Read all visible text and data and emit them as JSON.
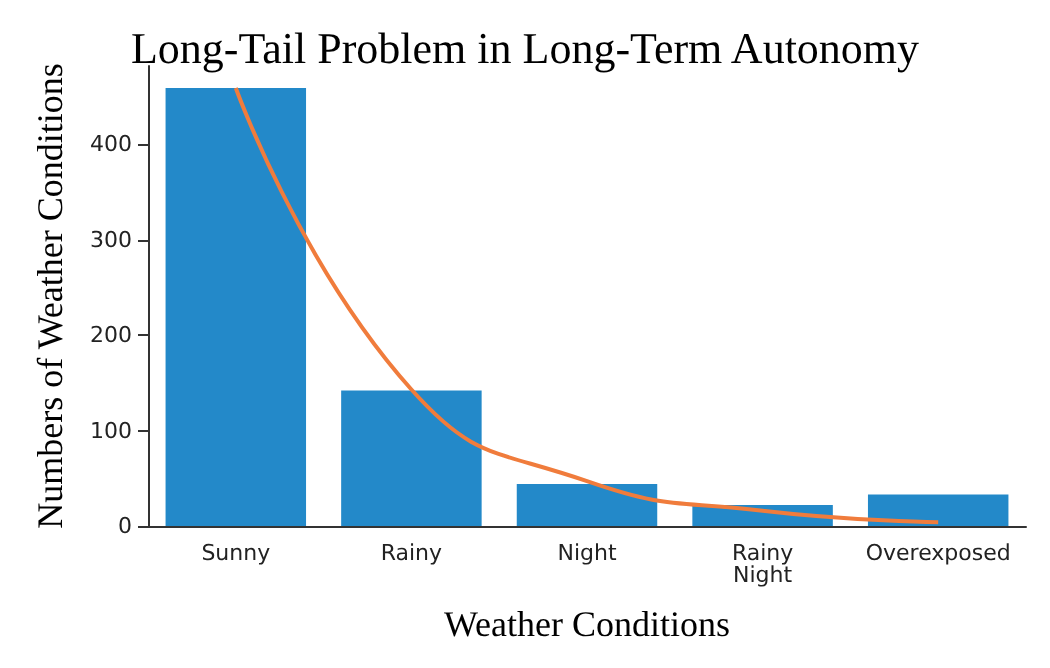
{
  "chart_data": {
    "type": "bar",
    "title": "Long-Tail Problem in Long-Term Autonomy",
    "xlabel": "Weather Conditions",
    "ylabel": "Numbers of Weather Conditions",
    "categories": [
      "Sunny",
      "Rainy",
      "Night",
      "Rainy\nNight",
      "Overexposed"
    ],
    "series": [
      {
        "color": "#2389c9",
        "values": [
          459,
          142,
          44,
          22,
          33
        ]
      },
      {
        "type": "line",
        "color": "#f07c3c",
        "values": [
          459,
          143,
          47,
          16,
          4
        ]
      }
    ],
    "ylim": [
      0,
      482
    ],
    "yticks": [
      0,
      100,
      200,
      300,
      400
    ],
    "grid": false,
    "marker": "none"
  }
}
